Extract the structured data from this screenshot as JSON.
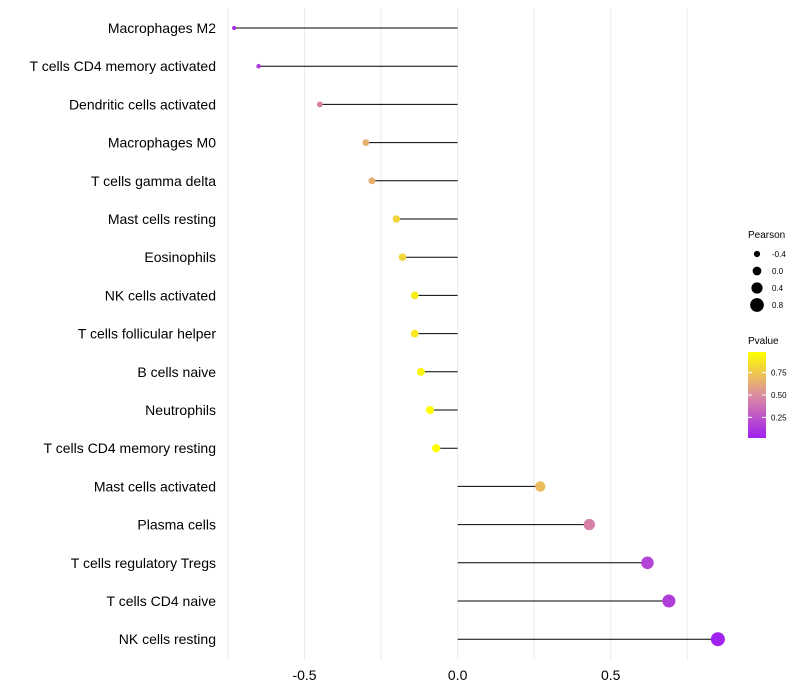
{
  "chart_data": {
    "type": "lollipop",
    "title": "",
    "xlabel": "",
    "ylabel": "",
    "xlim": [
      -0.75,
      0.87
    ],
    "x_ticks": [
      -0.5,
      0.0,
      0.5
    ],
    "x_tick_labels": [
      "-0.5",
      "0.0",
      "0.5"
    ],
    "grid": true,
    "categories": [
      "Macrophages M2",
      "T cells CD4 memory activated",
      "Dendritic cells activated",
      "Macrophages M0",
      "T cells gamma delta",
      "Mast cells resting",
      "Eosinophils",
      "NK cells activated",
      "T cells follicular helper",
      "B cells naive",
      "Neutrophils",
      "T cells CD4 memory resting",
      "Mast cells activated",
      "Plasma cells",
      "T cells regulatory  Tregs ",
      "T cells CD4 naive",
      "NK cells resting"
    ],
    "pearson": [
      -0.73,
      -0.65,
      -0.45,
      -0.3,
      -0.28,
      -0.2,
      -0.18,
      -0.14,
      -0.14,
      -0.12,
      -0.09,
      -0.07,
      0.27,
      0.43,
      0.62,
      0.69,
      0.85
    ],
    "pvalue": [
      0.05,
      0.15,
      0.45,
      0.65,
      0.65,
      0.8,
      0.8,
      0.9,
      0.88,
      0.93,
      0.97,
      0.98,
      0.7,
      0.45,
      0.18,
      0.15,
      0.03
    ],
    "legend": {
      "size_title": "Pearson",
      "size_values": [
        -0.4,
        0.0,
        0.4,
        0.8
      ],
      "size_labels": [
        "-0.4",
        "0.0",
        "0.4",
        "0.8"
      ],
      "color_title": "Pvalue",
      "color_ticks": [
        0.75,
        0.5,
        0.25
      ],
      "color_labels": [
        "0.75",
        "0.50",
        "0.25"
      ],
      "color_range": [
        0.02,
        0.98
      ],
      "color_low": "#a020f0",
      "color_mid": "#dc8ca0",
      "color_high": "#ffff00",
      "placement": "right"
    }
  }
}
